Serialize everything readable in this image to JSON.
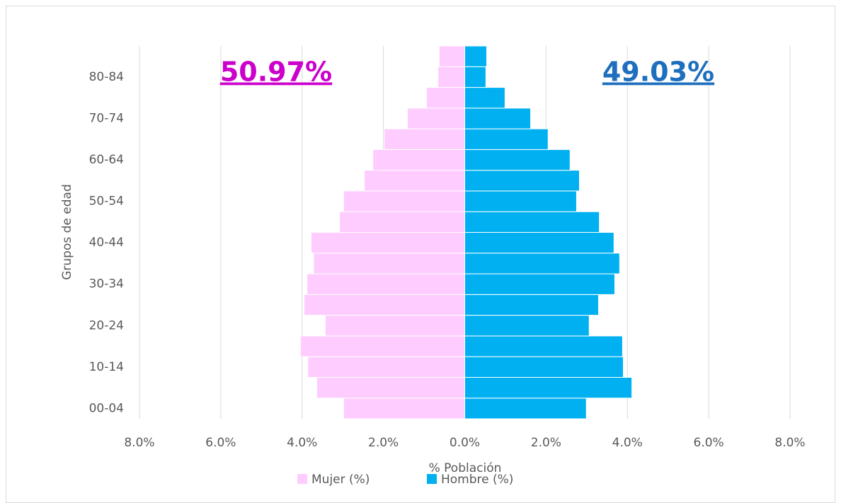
{
  "chart_data": {
    "type": "pyramid",
    "xlabel": "% Población",
    "ylabel": "Grupos de edad",
    "categories": [
      "00-04",
      null,
      "10-14",
      null,
      "20-24",
      null,
      "30-34",
      null,
      "40-44",
      null,
      "50-54",
      null,
      "60-64",
      null,
      "70-74",
      null,
      "80-84",
      null
    ],
    "series": [
      {
        "name": "Mujer (%)",
        "color": "#ffccff",
        "values": [
          -2.98,
          -3.64,
          -3.86,
          -4.04,
          -3.43,
          -3.95,
          -3.88,
          -3.72,
          -3.78,
          -3.08,
          -2.98,
          -2.47,
          -2.26,
          -1.98,
          -1.41,
          -0.94,
          -0.66,
          -0.63
        ]
      },
      {
        "name": "Hombre (%)",
        "color": "#00b0f0",
        "values": [
          2.99,
          4.11,
          3.9,
          3.88,
          3.06,
          3.29,
          3.69,
          3.81,
          3.67,
          3.31,
          2.75,
          2.82,
          2.59,
          2.05,
          1.62,
          0.99,
          0.52,
          0.54
        ]
      }
    ],
    "annotations": [
      {
        "text": "50.97%",
        "color": "#cc00cc"
      },
      {
        "text": "49.03%",
        "color": "#1f6fbf"
      }
    ],
    "xlim": [
      -8,
      8
    ],
    "xticks": [
      {
        "value": -8,
        "label": "8.0%"
      },
      {
        "value": -6,
        "label": "6.0%"
      },
      {
        "value": -4,
        "label": "4.0%"
      },
      {
        "value": -2,
        "label": "2.0%"
      },
      {
        "value": 0,
        "label": "0.0%"
      },
      {
        "value": 2,
        "label": "2.0%"
      },
      {
        "value": 4,
        "label": "4.0%"
      },
      {
        "value": 6,
        "label": "6.0%"
      },
      {
        "value": 8,
        "label": "8.0%"
      }
    ],
    "grid": true,
    "legend": "bottom"
  }
}
